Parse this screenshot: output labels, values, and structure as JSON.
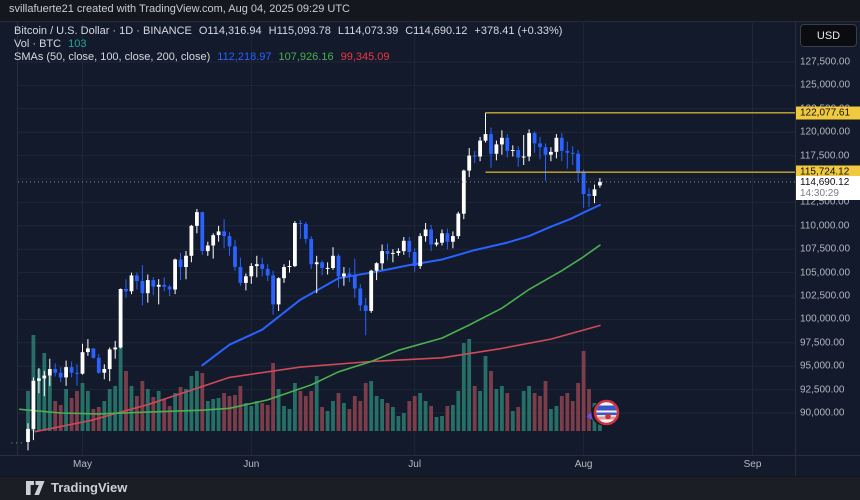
{
  "watermark": "svillafuerte21 created with TradingView.com, Aug 04, 2025 09:29 UTC",
  "header": {
    "symbol_title": "Bitcoin / U.S. Dollar · 1D · BINANCE",
    "open": "O114,316.94",
    "high": "H115,093.78",
    "low": "L114,073.39",
    "close": "C114,690.12",
    "change": "+378.41 (+0.33%)",
    "volume_label": "Vol · BTC",
    "volume_value": "103",
    "smas_label": "SMAs (50, close, 100, close, 200, close)",
    "sma50_value": "112,218.97",
    "sma100_value": "107,926.16",
    "sma200_value": "99,345.09"
  },
  "currency_button": "USD",
  "more_button": "···",
  "logo_text": "TradingView",
  "price_axis": {
    "labels": [
      "127,500.00",
      "125,000.00",
      "122,500.00",
      "120,000.00",
      "117,500.00",
      "115,000.00",
      "112,500.00",
      "110,000.00",
      "107,500.00",
      "105,000.00",
      "102,500.00",
      "100,000.00",
      "97,500.00",
      "95,000.00",
      "92,500.00",
      "90,000.00"
    ],
    "yellow_labels": [
      "122,077.61",
      "115,724.12"
    ],
    "current_price_label": "114,690.12",
    "countdown": "14:30:29"
  },
  "time_axis": {
    "months": [
      "May",
      "Jun",
      "Jul",
      "Aug",
      "Sep"
    ],
    "month_indices": [
      10,
      41,
      71,
      102,
      133
    ]
  },
  "colors": {
    "bg_chart": "#121a2b",
    "grid": "#1e2637",
    "border": "#2a2e39",
    "up": "#ffffff",
    "down": "#2962ff",
    "vol_up": "#2a7f71",
    "vol_down": "#8f4450",
    "sma50": "#2962ff",
    "sma100": "#4caf50",
    "sma200": "#d04a57",
    "yellow_line": "#c9ac30",
    "yellow_label_bg": "#f0c93f",
    "dotted_price_line": "#8a8e98",
    "axis_text": "#b2b5be",
    "legend_text": "#d6d9df",
    "vol_legend_value": "#26a69a",
    "legend_sma50": "#2962ff",
    "legend_sma100": "#4caf50",
    "legend_sma200": "#f23645"
  },
  "chart_data": {
    "type": "candlestick+volume",
    "symbol": "BTCUSD",
    "exchange": "BINANCE",
    "interval": "1D",
    "start_date": "2025-04-21",
    "ylim": [
      85500,
      131900
    ],
    "grid_prices": [
      127500,
      125000,
      122500,
      120000,
      117500,
      115000,
      112500,
      110000,
      107500,
      105000,
      102500,
      100000,
      97500,
      95000,
      92500,
      90000
    ],
    "current_price": 114690.12,
    "levels": [
      {
        "price": 122077.61,
        "from_index": 84
      },
      {
        "price": 115724.12,
        "from_index": 84
      }
    ],
    "candles": [
      [
        86900,
        88900,
        86000,
        88300,
        40
      ],
      [
        88300,
        93800,
        87100,
        93440,
        96
      ],
      [
        93440,
        94800,
        92100,
        93700,
        62
      ],
      [
        93700,
        94500,
        91800,
        94000,
        78
      ],
      [
        94000,
        95800,
        92900,
        94700,
        55
      ],
      [
        94700,
        95300,
        93900,
        94300,
        30
      ],
      [
        94300,
        94900,
        93300,
        93800,
        26
      ],
      [
        93800,
        95600,
        92900,
        94900,
        42
      ],
      [
        94900,
        95500,
        93800,
        94300,
        33
      ],
      [
        94300,
        95200,
        92900,
        94200,
        40
      ],
      [
        94200,
        97400,
        94100,
        96500,
        48
      ],
      [
        96500,
        97900,
        96100,
        96900,
        40
      ],
      [
        96900,
        96900,
        95800,
        95900,
        22
      ],
      [
        95900,
        96300,
        94200,
        94300,
        24
      ],
      [
        94300,
        95200,
        93600,
        94700,
        30
      ],
      [
        94700,
        97000,
        93400,
        96800,
        42
      ],
      [
        96800,
        97700,
        95800,
        97000,
        45
      ],
      [
        97000,
        103300,
        96900,
        103250,
        85
      ],
      [
        103250,
        104300,
        102300,
        103000,
        60
      ],
      [
        103000,
        105000,
        102700,
        104700,
        45
      ],
      [
        104700,
        105000,
        103200,
        104100,
        35
      ],
      [
        104100,
        105800,
        101500,
        102800,
        50
      ],
      [
        102800,
        104800,
        101800,
        104200,
        42
      ],
      [
        104200,
        104500,
        102600,
        103500,
        34
      ],
      [
        103500,
        104300,
        101600,
        103700,
        40
      ],
      [
        103700,
        104500,
        103000,
        103500,
        32
      ],
      [
        103500,
        103700,
        102500,
        103200,
        25
      ],
      [
        103200,
        106500,
        102700,
        106400,
        38
      ],
      [
        106400,
        107100,
        104200,
        105600,
        44
      ],
      [
        105600,
        107300,
        104300,
        106800,
        42
      ],
      [
        106800,
        110100,
        106100,
        110000,
        55
      ],
      [
        110000,
        111800,
        109200,
        111460,
        60
      ],
      [
        111460,
        111500,
        106900,
        107300,
        58
      ],
      [
        107300,
        108300,
        106800,
        107900,
        30
      ],
      [
        107900,
        109200,
        106500,
        109000,
        32
      ],
      [
        109000,
        110000,
        108300,
        109400,
        33
      ],
      [
        109400,
        110700,
        107600,
        108900,
        38
      ],
      [
        108900,
        109300,
        106800,
        107800,
        35
      ],
      [
        107800,
        108500,
        105200,
        105600,
        36
      ],
      [
        105600,
        106600,
        103600,
        103900,
        45
      ],
      [
        103900,
        104900,
        103100,
        104600,
        28
      ],
      [
        104600,
        106000,
        103800,
        105700,
        25
      ],
      [
        105700,
        106800,
        104500,
        105900,
        30
      ],
      [
        105900,
        106600,
        104600,
        105400,
        28
      ],
      [
        105400,
        105900,
        104100,
        104700,
        26
      ],
      [
        104700,
        105200,
        100500,
        101600,
        68
      ],
      [
        101600,
        104500,
        100900,
        104400,
        42
      ],
      [
        104400,
        105900,
        103900,
        105600,
        25
      ],
      [
        105600,
        106300,
        105000,
        105700,
        22
      ],
      [
        105700,
        110500,
        105600,
        110300,
        48
      ],
      [
        110300,
        110600,
        108600,
        110200,
        40
      ],
      [
        110200,
        110400,
        108100,
        108600,
        35
      ],
      [
        108600,
        108900,
        105400,
        105900,
        40
      ],
      [
        105900,
        106800,
        102800,
        106100,
        55
      ],
      [
        106100,
        106300,
        104700,
        105500,
        24
      ],
      [
        105500,
        106100,
        104800,
        105500,
        20
      ],
      [
        105500,
        107700,
        105300,
        106800,
        30
      ],
      [
        106800,
        107000,
        103400,
        104600,
        38
      ],
      [
        104600,
        105600,
        103600,
        104900,
        28
      ],
      [
        104900,
        105500,
        104000,
        104700,
        22
      ],
      [
        104700,
        106500,
        102300,
        103300,
        35
      ],
      [
        103300,
        103800,
        100900,
        101500,
        30
      ],
      [
        101500,
        102300,
        98300,
        100900,
        48
      ],
      [
        100900,
        105300,
        100700,
        105200,
        50
      ],
      [
        105200,
        106100,
        104200,
        106000,
        35
      ],
      [
        106000,
        108000,
        105300,
        107300,
        32
      ],
      [
        107300,
        108100,
        106300,
        107000,
        28
      ],
      [
        107000,
        107500,
        106100,
        107100,
        24
      ],
      [
        107100,
        107600,
        106800,
        107300,
        15
      ],
      [
        107300,
        108800,
        106900,
        108400,
        18
      ],
      [
        108400,
        108800,
        106600,
        107200,
        30
      ],
      [
        107200,
        107600,
        105100,
        105700,
        35
      ],
      [
        105700,
        109200,
        105400,
        108900,
        38
      ],
      [
        108900,
        110300,
        108300,
        109600,
        30
      ],
      [
        109600,
        110100,
        107300,
        108000,
        25
      ],
      [
        108000,
        108600,
        107800,
        108200,
        14
      ],
      [
        108200,
        109600,
        107900,
        109200,
        15
      ],
      [
        109200,
        109700,
        107500,
        108300,
        25
      ],
      [
        108300,
        109400,
        107600,
        108900,
        26
      ],
      [
        108900,
        111500,
        108600,
        111300,
        40
      ],
      [
        111300,
        116000,
        110700,
        115900,
        88
      ],
      [
        115900,
        118300,
        115200,
        117500,
        92
      ],
      [
        117500,
        118000,
        116700,
        117400,
        45
      ],
      [
        117400,
        119500,
        116900,
        119100,
        40
      ],
      [
        119100,
        122078,
        118900,
        119800,
        75
      ],
      [
        119800,
        120500,
        116200,
        117700,
        60
      ],
      [
        117700,
        119100,
        117000,
        118700,
        42
      ],
      [
        118700,
        120200,
        117600,
        119400,
        45
      ],
      [
        119400,
        119800,
        117300,
        118000,
        38
      ],
      [
        118000,
        118600,
        117400,
        118100,
        20
      ],
      [
        118100,
        118500,
        116300,
        117300,
        24
      ],
      [
        117300,
        119700,
        116500,
        117400,
        40
      ],
      [
        117400,
        120300,
        116900,
        119900,
        45
      ],
      [
        119900,
        120100,
        117800,
        118800,
        38
      ],
      [
        118800,
        119500,
        117100,
        118400,
        35
      ],
      [
        118400,
        118800,
        114800,
        117600,
        50
      ],
      [
        117600,
        118400,
        116900,
        117900,
        22
      ],
      [
        117900,
        119800,
        117200,
        119400,
        25
      ],
      [
        119400,
        119900,
        116900,
        118000,
        35
      ],
      [
        118000,
        119000,
        116100,
        117800,
        38
      ],
      [
        117800,
        118500,
        116500,
        117700,
        30
      ],
      [
        117700,
        118100,
        114700,
        115800,
        48
      ],
      [
        115800,
        116000,
        111900,
        113400,
        80
      ],
      [
        113400,
        114000,
        112000,
        113200,
        42
      ],
      [
        113200,
        114400,
        112400,
        113900,
        28
      ],
      [
        114317,
        115094,
        114073,
        114690,
        25
      ]
    ],
    "sma50_points": [
      [
        32,
        95100
      ],
      [
        37,
        97300
      ],
      [
        43,
        98900
      ],
      [
        50,
        102100
      ],
      [
        57,
        104400
      ],
      [
        64,
        105100
      ],
      [
        70,
        105800
      ],
      [
        76,
        106400
      ],
      [
        82,
        107400
      ],
      [
        88,
        108200
      ],
      [
        92,
        108900
      ],
      [
        96,
        109900
      ],
      [
        99.5,
        110700
      ],
      [
        102.3,
        111500
      ],
      [
        105,
        112219
      ]
    ],
    "sma100_points": [
      [
        -1.5,
        90400
      ],
      [
        6,
        90000
      ],
      [
        13,
        89900
      ],
      [
        22,
        90100
      ],
      [
        32,
        90300
      ],
      [
        37,
        90500
      ],
      [
        44,
        91400
      ],
      [
        52,
        93000
      ],
      [
        57,
        94400
      ],
      [
        63,
        95500
      ],
      [
        68,
        96700
      ],
      [
        76,
        98000
      ],
      [
        81,
        99400
      ],
      [
        87,
        101200
      ],
      [
        92,
        103200
      ],
      [
        98,
        105200
      ],
      [
        101.5,
        106500
      ],
      [
        105,
        107926
      ]
    ],
    "sma200_points": [
      [
        1.3,
        88000
      ],
      [
        11.5,
        89200
      ],
      [
        22,
        90900
      ],
      [
        37,
        93800
      ],
      [
        50,
        94900
      ],
      [
        63,
        95500
      ],
      [
        76,
        95900
      ],
      [
        87,
        96900
      ],
      [
        96,
        97900
      ],
      [
        105,
        99345
      ]
    ],
    "sticker": {
      "x_index": 106.2,
      "price": 90050
    }
  }
}
